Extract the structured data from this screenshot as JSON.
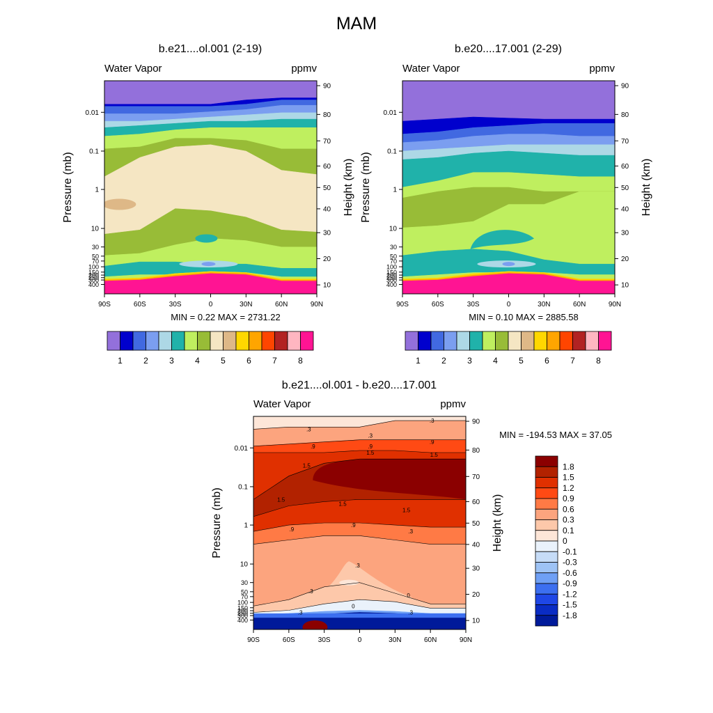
{
  "figure": {
    "title": "MAM"
  },
  "chart_data": [
    {
      "type": "contour",
      "title": "b.e21....ol.001 (2-19)",
      "left_label": "Water Vapor",
      "right_label": "ppmv",
      "xlabel": "",
      "ylabel": "Pressure (mb)",
      "ylabel_right": "Height (km)",
      "x_ticks": [
        "90S",
        "60S",
        "30S",
        "0",
        "30N",
        "60N",
        "90N"
      ],
      "y_ticks": [
        "0.01",
        "0.1",
        "1",
        "10",
        "30",
        "50",
        "70",
        "100",
        "150",
        "200",
        "250",
        "300",
        "400"
      ],
      "y_right_ticks": [
        "90",
        "80",
        "70",
        "60",
        "50",
        "40",
        "30",
        "20",
        "10"
      ],
      "ylim_mb": [
        400,
        0.0015
      ],
      "stats": "MIN =   0.22  MAX = 2731.22",
      "colorbar_labels": [
        "1",
        "2",
        "3",
        "4",
        "5",
        "6",
        "7",
        "8"
      ],
      "colorbar_colors": [
        "#9370db",
        "#0000cd",
        "#4169e1",
        "#7b9ef0",
        "#add8e6",
        "#20b2aa",
        "#bfef5f",
        "#98bc37",
        "#f5e6c3",
        "#deb887",
        "#ffd700",
        "#ffa500",
        "#ff4500",
        "#b22222",
        "#ffb6c1",
        "#ff1493"
      ]
    },
    {
      "type": "contour",
      "title": "b.e20....17.001 (2-29)",
      "left_label": "Water Vapor",
      "right_label": "ppmv",
      "xlabel": "",
      "ylabel": "Pressure (mb)",
      "ylabel_right": "Height (km)",
      "x_ticks": [
        "90S",
        "60S",
        "30S",
        "0",
        "30N",
        "60N",
        "90N"
      ],
      "y_ticks": [
        "0.01",
        "0.1",
        "1",
        "10",
        "30",
        "50",
        "70",
        "100",
        "150",
        "200",
        "250",
        "300",
        "400"
      ],
      "y_right_ticks": [
        "90",
        "80",
        "70",
        "60",
        "50",
        "40",
        "30",
        "20",
        "10"
      ],
      "ylim_mb": [
        400,
        0.0015
      ],
      "stats": "MIN =   0.10  MAX = 2885.58",
      "colorbar_labels": [
        "1",
        "2",
        "3",
        "4",
        "5",
        "6",
        "7",
        "8"
      ],
      "colorbar_colors": [
        "#9370db",
        "#0000cd",
        "#4169e1",
        "#7b9ef0",
        "#add8e6",
        "#20b2aa",
        "#bfef5f",
        "#98bc37",
        "#f5e6c3",
        "#deb887",
        "#ffd700",
        "#ffa500",
        "#ff4500",
        "#b22222",
        "#ffb6c1",
        "#ff1493"
      ]
    },
    {
      "type": "contour",
      "title": "b.e21....ol.001 - b.e20....17.001",
      "left_label": "Water Vapor",
      "right_label": "ppmv",
      "xlabel": "",
      "ylabel": "Pressure (mb)",
      "ylabel_right": "Height (km)",
      "x_ticks": [
        "90S",
        "60S",
        "30S",
        "0",
        "30N",
        "60N",
        "90N"
      ],
      "y_ticks": [
        "0.01",
        "0.1",
        "1",
        "10",
        "30",
        "50",
        "70",
        "100",
        "150",
        "200",
        "250",
        "300",
        "400"
      ],
      "y_right_ticks": [
        "90",
        "80",
        "70",
        "60",
        "50",
        "40",
        "30",
        "20",
        "10"
      ],
      "ylim_mb": [
        400,
        0.0015
      ],
      "stats": "MIN = -194.53  MAX =  37.05",
      "contour_labels": [
        ".3",
        ".3",
        ".3",
        ".9",
        ".9",
        ".9",
        "1.5",
        "1.5",
        "1.5",
        "1.5",
        "1.5",
        "1.5",
        ".9",
        ".9",
        ".3",
        ".3",
        ".3",
        "0",
        "0",
        ".3",
        ".3"
      ],
      "colorbar_labels": [
        "1.8",
        "1.5",
        "1.2",
        "0.9",
        "0.6",
        "0.3",
        "0.1",
        "0",
        "-0.1",
        "-0.3",
        "-0.6",
        "-0.9",
        "-1.2",
        "-1.5",
        "-1.8"
      ],
      "colorbar_colors": [
        "#8b0000",
        "#b22200",
        "#e03000",
        "#ff4a14",
        "#ff7a45",
        "#fca47e",
        "#fdc8aa",
        "#fde6d8",
        "#eaf2fb",
        "#c6dcf7",
        "#9ec3f5",
        "#6fa0f5",
        "#3c6ff0",
        "#1f47e6",
        "#0a2cc4",
        "#001a9a"
      ]
    }
  ]
}
